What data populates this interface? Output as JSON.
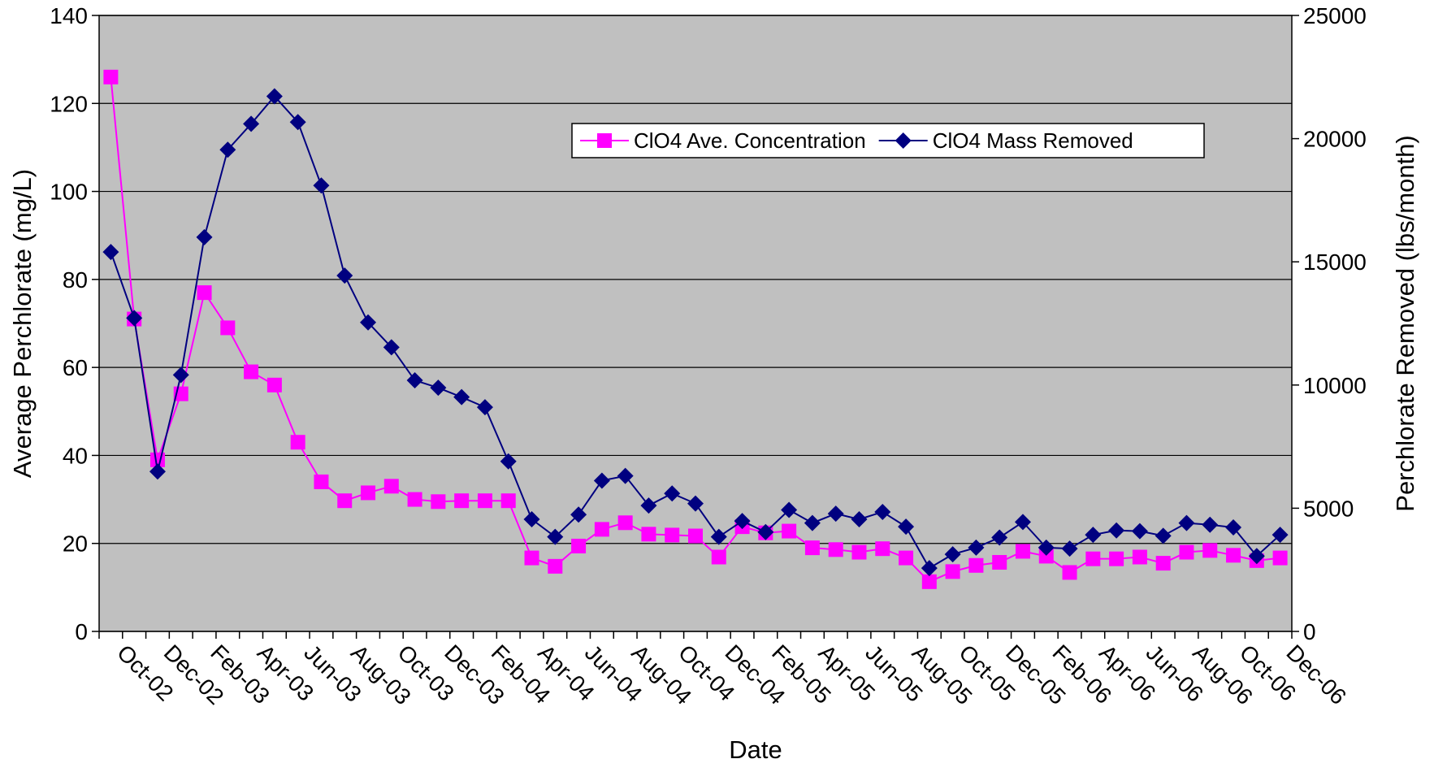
{
  "chart_data": {
    "type": "line",
    "xlabel": "Date",
    "ylabel": "Average Perchlorate (mg/L)",
    "y2label": "Perchlorate Removed (lbs/month)",
    "categories": [
      "Oct-02",
      null,
      "Dec-02",
      null,
      "Feb-03",
      null,
      "Apr-03",
      null,
      "Jun-03",
      null,
      "Aug-03",
      null,
      "Oct-03",
      null,
      "Dec-03",
      null,
      "Feb-04",
      null,
      "Apr-04",
      null,
      "Jun-04",
      null,
      "Aug-04",
      null,
      "Oct-04",
      null,
      "Dec-04",
      null,
      "Feb-05",
      null,
      "Apr-05",
      null,
      "Jun-05",
      null,
      "Aug-05",
      null,
      "Oct-05",
      null,
      "Dec-05",
      null,
      "Feb-06",
      null,
      "Apr-06",
      null,
      "Jun-06",
      null,
      "Aug-06",
      null,
      "Oct-06",
      null,
      "Dec-06"
    ],
    "series": [
      {
        "name": "ClO4 Ave. Concentration",
        "color": "#ff00ff",
        "marker": "square",
        "values": [
          126,
          71,
          39,
          54,
          77,
          69,
          59,
          56,
          43,
          34,
          29.7,
          31.5,
          33,
          30,
          29.5,
          29.7,
          29.7,
          29.7,
          16.7,
          14.8,
          19.4,
          23.2,
          24.7,
          22.1,
          21.9,
          21.7,
          16.9,
          23.8,
          22.4,
          22.8,
          19,
          18.6,
          18,
          18.8,
          16.7,
          11.3,
          13.6,
          15,
          15.7,
          18.2,
          17.1,
          13.4,
          16.5,
          16.5,
          16.9,
          15.5,
          18,
          18.4,
          17.3,
          16.1,
          16.7
        ]
      },
      {
        "name": "ClO4 Mass Removed",
        "color": "#000080",
        "marker": "diamond",
        "axis": "y2",
        "values": [
          15400,
          12720,
          6490,
          10410,
          16000,
          19550,
          20600,
          21720,
          20670,
          18100,
          14440,
          12540,
          11530,
          10190,
          9890,
          9510,
          9100,
          6900,
          4550,
          3840,
          4740,
          6120,
          6310,
          5110,
          5600,
          5190,
          3840,
          4480,
          4030,
          4930,
          4400,
          4780,
          4550,
          4850,
          4250,
          2570,
          3130,
          3400,
          3810,
          4440,
          3400,
          3360,
          3920,
          4100,
          4070,
          3880,
          4400,
          4330,
          4220,
          3060,
          3920
        ]
      }
    ],
    "ylim": [
      0,
      140
    ],
    "yticks": [
      0,
      20,
      40,
      60,
      80,
      100,
      120,
      140
    ],
    "y2lim": [
      0,
      25000
    ],
    "y2ticks": [
      0,
      5000,
      10000,
      15000,
      20000,
      25000
    ],
    "grid": true,
    "legend": "upper right",
    "background": "#c0c0c0"
  }
}
